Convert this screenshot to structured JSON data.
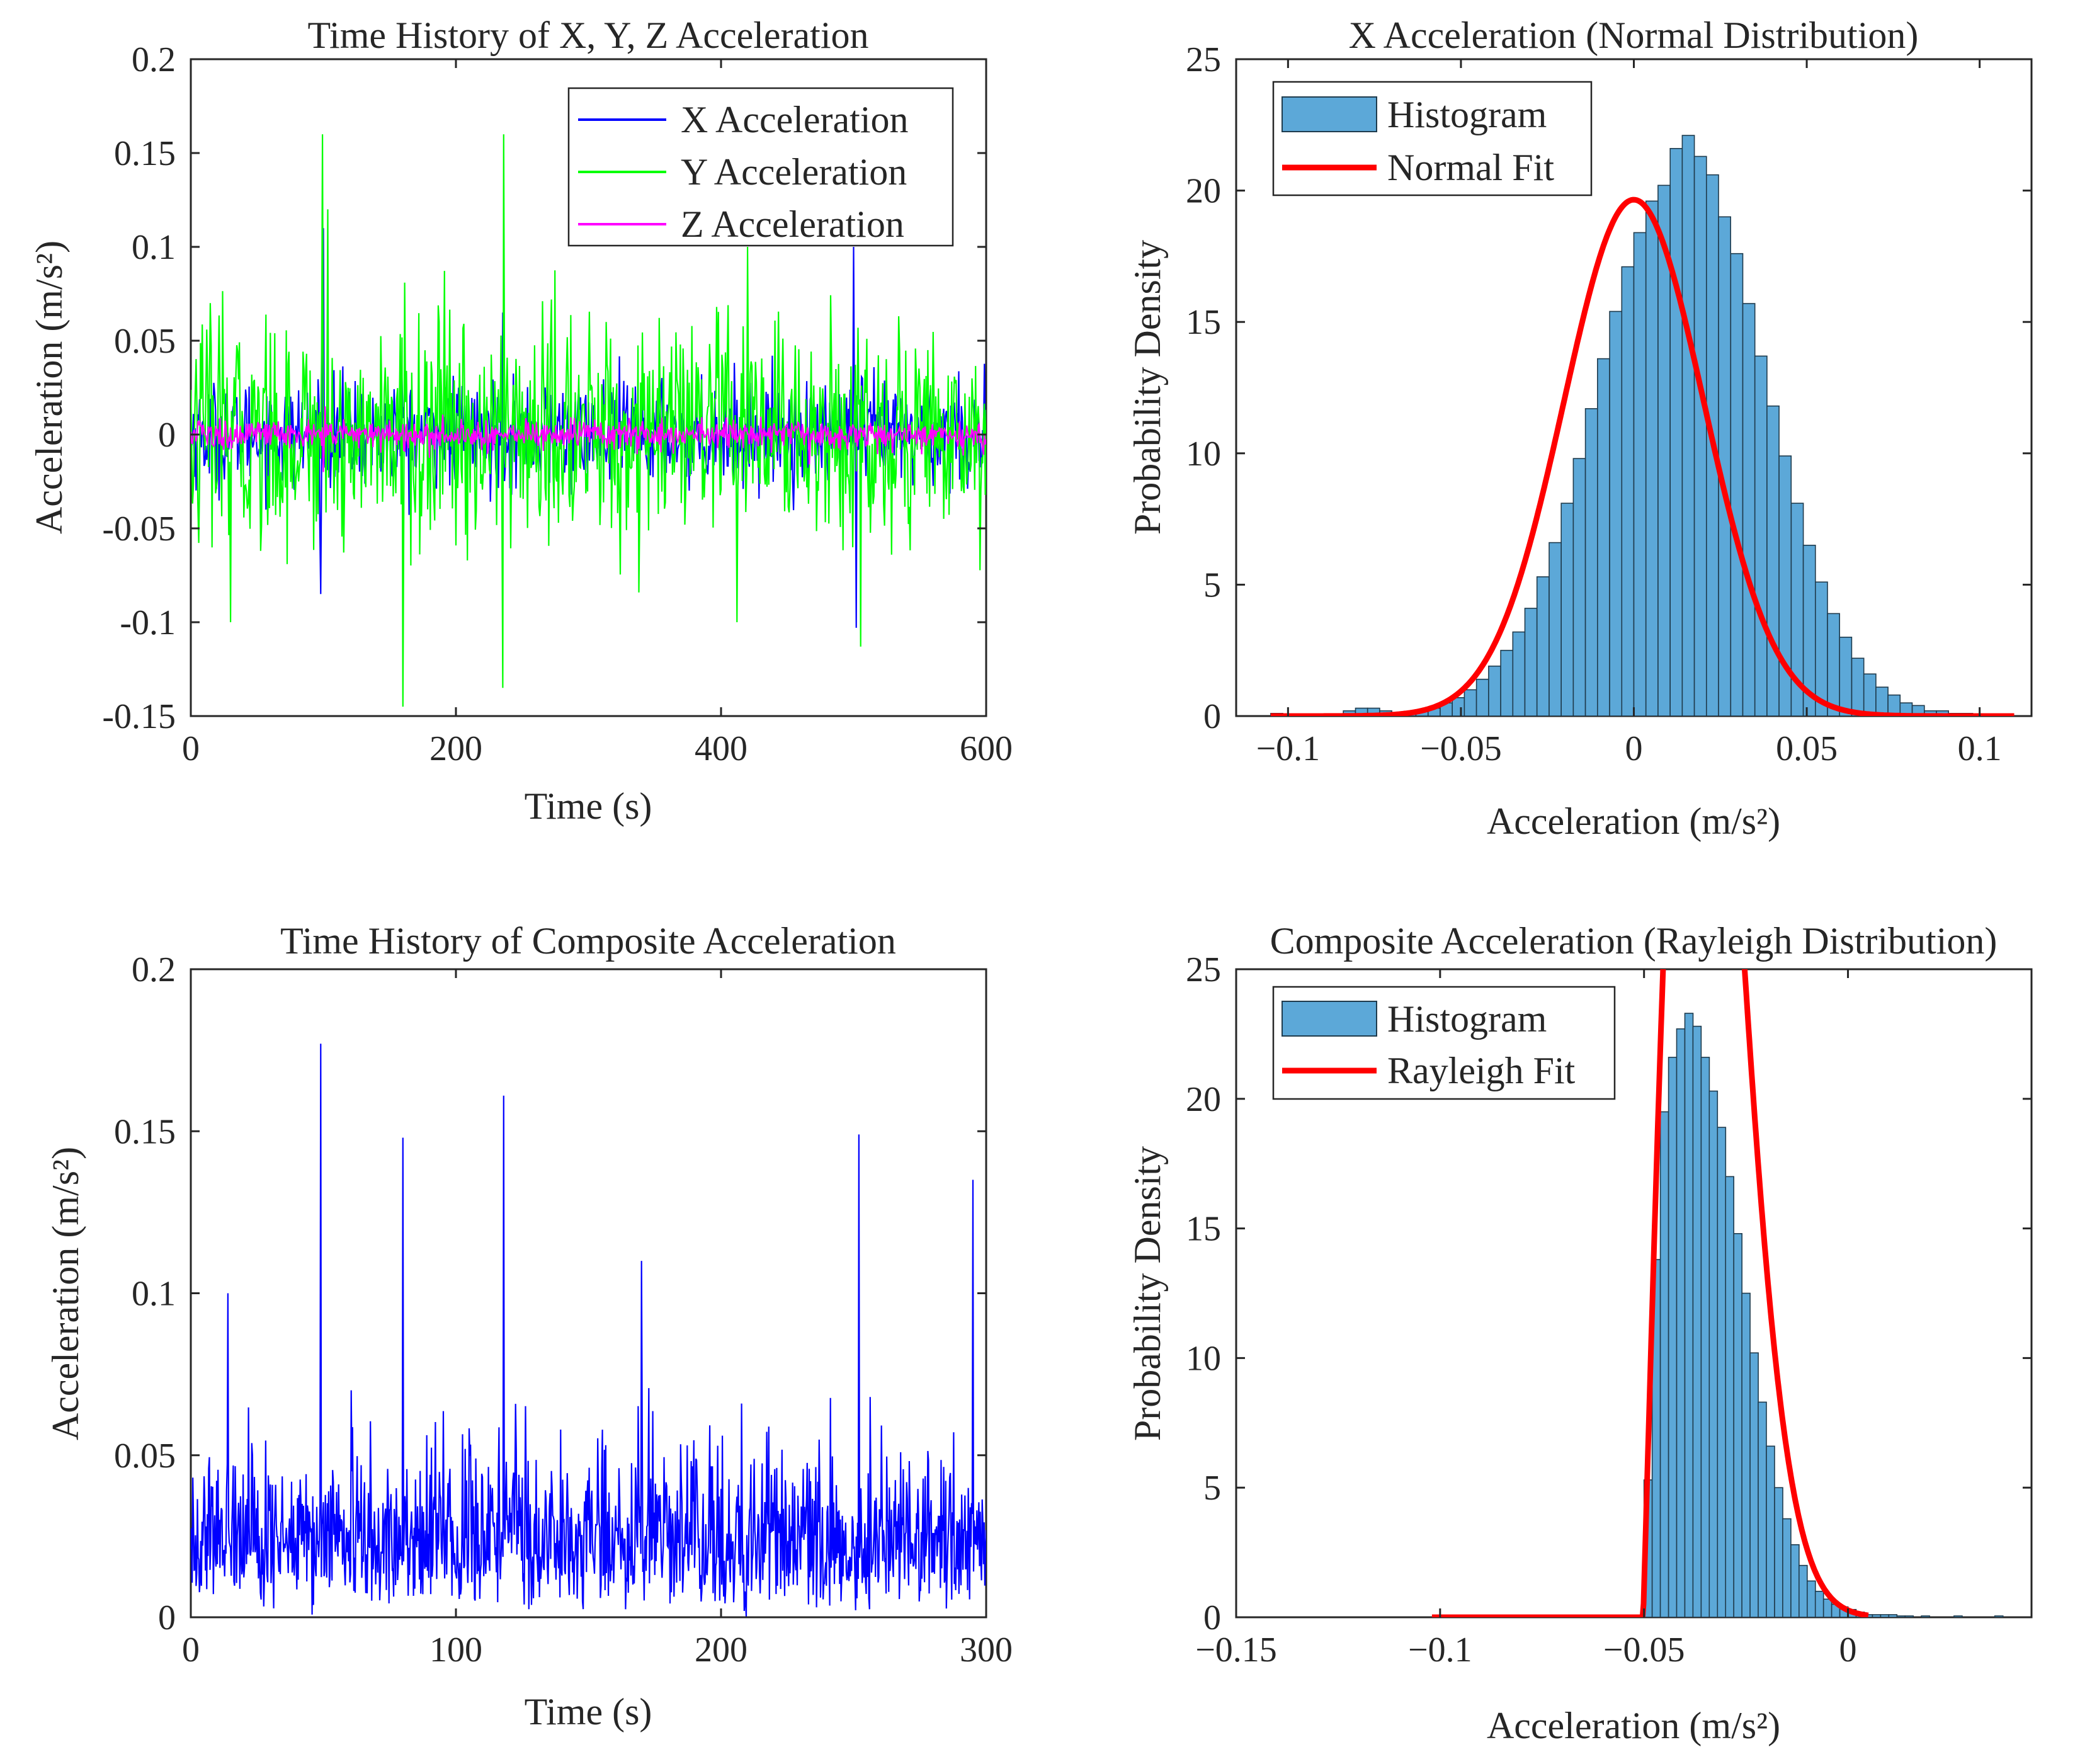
{
  "chart_data": [
    {
      "id": "p1",
      "type": "line",
      "title": "Time History of X, Y, Z Acceleration",
      "xlabel": "Time (s)",
      "ylabel": "Acceleration (m/s²)",
      "xlim": [
        0,
        600
      ],
      "ylim": [
        -0.15,
        0.2
      ],
      "xticks": [
        0,
        200,
        400,
        600
      ],
      "xtick_labels": [
        "0",
        "200",
        "400",
        "600"
      ],
      "yticks": [
        -0.15,
        -0.1,
        -0.05,
        0,
        0.05,
        0.1,
        0.15,
        0.2
      ],
      "ytick_labels": [
        "-0.15",
        "-0.1",
        "-0.05",
        "0",
        "0.05",
        "0.1",
        "0.15",
        "0.2"
      ],
      "legend_position": "top-right",
      "series": [
        {
          "name": "X Acceleration",
          "color": "#0000ff",
          "kind": "noise",
          "std": 0.014,
          "peak_range": [
            -0.105,
            0.11
          ],
          "n": 900,
          "peaks": [
            [
              98,
              -0.085
            ],
            [
              100,
              0.11
            ],
            [
              500,
              0.1
            ],
            [
              502,
              -0.103
            ],
            [
              235,
              0.065
            ]
          ]
        },
        {
          "name": "Y Acceleration",
          "color": "#00ff00",
          "kind": "noise",
          "std": 0.03,
          "peak_range": [
            -0.145,
            0.16
          ],
          "n": 900,
          "peaks": [
            [
              99,
              0.16
            ],
            [
              103,
              0.12
            ],
            [
              160,
              -0.145
            ],
            [
              235,
              -0.135
            ],
            [
              236,
              0.16
            ],
            [
              412,
              -0.1
            ],
            [
              505,
              -0.113
            ],
            [
              30,
              -0.1
            ],
            [
              420,
              0.1
            ]
          ]
        },
        {
          "name": "Z Acceleration",
          "color": "#ff00ff",
          "kind": "noise",
          "std": 0.004,
          "peak_range": [
            -0.02,
            0.02
          ],
          "n": 900,
          "peaks": [
            [
              100,
              -0.02
            ],
            [
              101,
              0.015
            ]
          ]
        }
      ]
    },
    {
      "id": "p2",
      "type": "bar",
      "title": "X Acceleration (Normal Distribution)",
      "xlabel": "Acceleration (m/s²)",
      "ylabel": "Probability Density",
      "xlim": [
        -0.115,
        0.115
      ],
      "ylim": [
        0,
        25
      ],
      "xticks": [
        -0.1,
        -0.05,
        0,
        0.05,
        0.1
      ],
      "xtick_labels": [
        "−0.1",
        "−0.05",
        "0",
        "0.05",
        "0.1"
      ],
      "yticks": [
        0,
        5,
        10,
        15,
        20,
        25
      ],
      "ytick_labels": [
        "0",
        "5",
        "10",
        "15",
        "20",
        "25"
      ],
      "legend_position": "top-left",
      "histogram": {
        "name": "Histogram",
        "color": "#5ca8d8",
        "edge_color": "#1f3b4d",
        "bin_start": -0.105,
        "bin_width": 0.0035,
        "values": [
          0.1,
          0,
          0,
          0,
          0,
          0,
          0.2,
          0.3,
          0.3,
          0.2,
          0.1,
          0.1,
          0.2,
          0.3,
          0.5,
          0.7,
          1.0,
          1.4,
          1.9,
          2.5,
          3.2,
          4.1,
          5.3,
          6.6,
          8.1,
          9.8,
          11.7,
          13.6,
          15.4,
          17.1,
          18.4,
          19.6,
          20.2,
          21.6,
          22.1,
          21.3,
          20.6,
          19.0,
          17.6,
          15.7,
          13.7,
          11.8,
          9.9,
          8.1,
          6.5,
          5.1,
          3.9,
          3.0,
          2.2,
          1.6,
          1.1,
          0.8,
          0.5,
          0.4,
          0.2,
          0.2,
          0.1,
          0.1,
          0,
          0,
          0,
          0,
          0,
          0.1,
          0,
          0
        ]
      },
      "fit": {
        "name": "Normal Fit",
        "color": "#ff0000",
        "kind": "normal",
        "mu": 0.0,
        "sigma": 0.0203,
        "x_range": [
          -0.105,
          0.11
        ]
      }
    },
    {
      "id": "p3",
      "type": "line",
      "title": "Time History of Composite Acceleration",
      "xlabel": "Time (s)",
      "ylabel": "Acceleration (m/s²)",
      "xlim": [
        0,
        300
      ],
      "ylim": [
        0,
        0.2
      ],
      "xticks": [
        0,
        100,
        200,
        300
      ],
      "xtick_labels": [
        "0",
        "100",
        "200",
        "300"
      ],
      "yticks": [
        0,
        0.05,
        0.1,
        0.15,
        0.2
      ],
      "ytick_labels": [
        "0",
        "0.05",
        "0.1",
        "0.15",
        "0.2"
      ],
      "series": [
        {
          "name": "Composite Acceleration",
          "color": "#0000ff",
          "kind": "rayleigh",
          "scale": 0.02,
          "n": 1200,
          "peaks": [
            [
              49,
              0.177
            ],
            [
              80,
              0.148
            ],
            [
              118,
              0.161
            ],
            [
              252,
              0.149
            ],
            [
              295,
              0.135
            ],
            [
              14,
              0.1
            ],
            [
              170,
              0.11
            ]
          ]
        }
      ]
    },
    {
      "id": "p4",
      "type": "bar",
      "title": "Composite Acceleration (Rayleigh Distribution)",
      "xlabel": "Acceleration (m/s²)",
      "ylabel": "Probability Density",
      "xlim": [
        -0.15,
        0.045
      ],
      "ylim": [
        0,
        25
      ],
      "xticks": [
        -0.15,
        -0.1,
        -0.05,
        0
      ],
      "xtick_labels": [
        "−0.15",
        "−0.1",
        "−0.05",
        "0"
      ],
      "yticks": [
        0,
        5,
        10,
        15,
        20,
        25
      ],
      "ytick_labels": [
        "0",
        "5",
        "10",
        "15",
        "20",
        "25"
      ],
      "legend_position": "top-left",
      "histogram": {
        "name": "Histogram",
        "color": "#5ca8d8",
        "edge_color": "#1f3b4d",
        "bin_start": -0.05,
        "bin_width": 0.002,
        "values": [
          5.3,
          13.8,
          19.5,
          21.6,
          22.7,
          23.3,
          22.8,
          21.6,
          20.3,
          18.9,
          17.0,
          14.8,
          12.5,
          10.2,
          8.3,
          6.6,
          5.0,
          3.8,
          2.8,
          2.0,
          1.4,
          1.0,
          0.7,
          0.5,
          0.4,
          0.3,
          0.2,
          0.1,
          0.1,
          0.1,
          0.1,
          0.05,
          0.05,
          0,
          0.05,
          0,
          0,
          0,
          0.05,
          0,
          0,
          0,
          0,
          0.05
        ]
      },
      "fit": {
        "name": "Rayleigh Fit",
        "color": "#ff0000",
        "kind": "rayleigh",
        "loc": -0.0502,
        "sigma": 0.0135,
        "x_range": [
          -0.102,
          0.005
        ]
      }
    }
  ]
}
